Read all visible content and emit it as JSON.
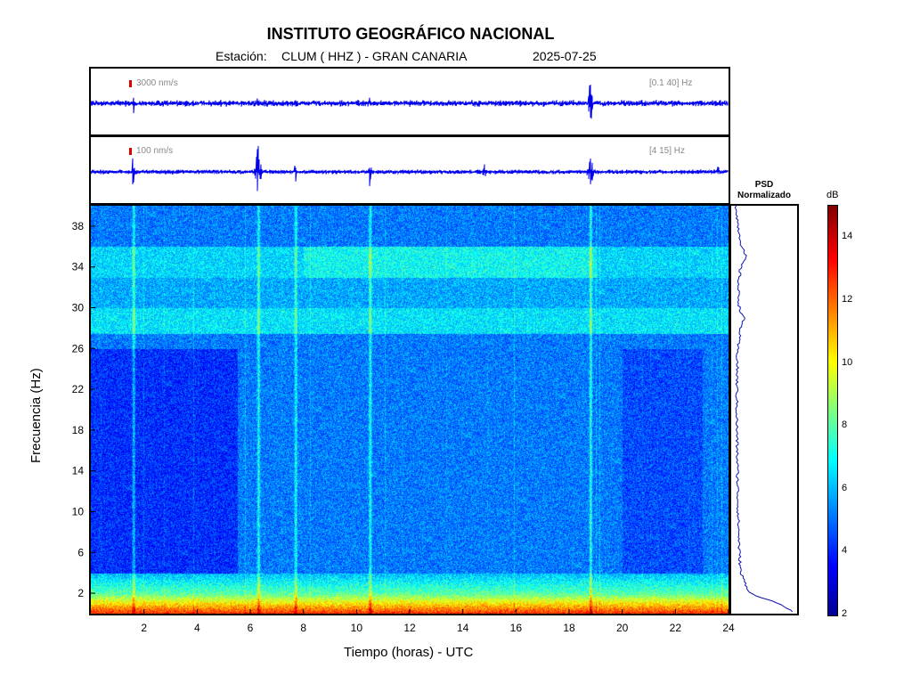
{
  "header": {
    "title": "INSTITUTO GEOGRÁFICO NACIONAL",
    "station_label": "Estación:",
    "station": "CLUM ( HHZ ) - GRAN CANARIA",
    "date": "2025-07-25"
  },
  "traces": [
    {
      "scale_label": "3000 nm/s",
      "band_label": "[0.1 40] Hz"
    },
    {
      "scale_label": "100 nm/s",
      "band_label": "[4 15] Hz"
    }
  ],
  "psd": {
    "title_line1": "PSD",
    "title_line2": "Normalizado"
  },
  "colorbar": {
    "unit": "dB",
    "ticks": [
      "2",
      "4",
      "6",
      "8",
      "10",
      "12",
      "14"
    ],
    "min": 2,
    "max": 15
  },
  "chart_data": {
    "type": "heatmap",
    "title": "INSTITUTO GEOGRÁFICO NACIONAL",
    "xlabel": "Tiempo (horas) - UTC",
    "ylabel": "Frecuencia  (Hz)",
    "x_ticks": [
      "2",
      "4",
      "6",
      "8",
      "10",
      "12",
      "14",
      "16",
      "18",
      "20",
      "22",
      "24"
    ],
    "y_ticks": [
      "2",
      "6",
      "10",
      "14",
      "18",
      "22",
      "26",
      "30",
      "34",
      "38"
    ],
    "xlim": [
      0,
      24
    ],
    "ylim": [
      0,
      40
    ],
    "colormap": "jet",
    "clim_db": [
      2,
      15
    ],
    "events_hours": [
      1.6,
      6.3,
      7.7,
      10.5,
      18.8
    ],
    "bright_bands_hz": [
      [
        0,
        2
      ],
      [
        28,
        30
      ],
      [
        34,
        36
      ]
    ],
    "psd_normalized": {
      "freq_hz": [
        0,
        1,
        2,
        4,
        6,
        8,
        10,
        14,
        18,
        22,
        26,
        28,
        29,
        30,
        32,
        34,
        35,
        36,
        38,
        40
      ],
      "value": [
        1.0,
        0.7,
        0.25,
        0.1,
        0.08,
        0.07,
        0.06,
        0.05,
        0.04,
        0.04,
        0.05,
        0.1,
        0.15,
        0.08,
        0.06,
        0.1,
        0.18,
        0.12,
        0.06,
        0.03
      ]
    }
  }
}
